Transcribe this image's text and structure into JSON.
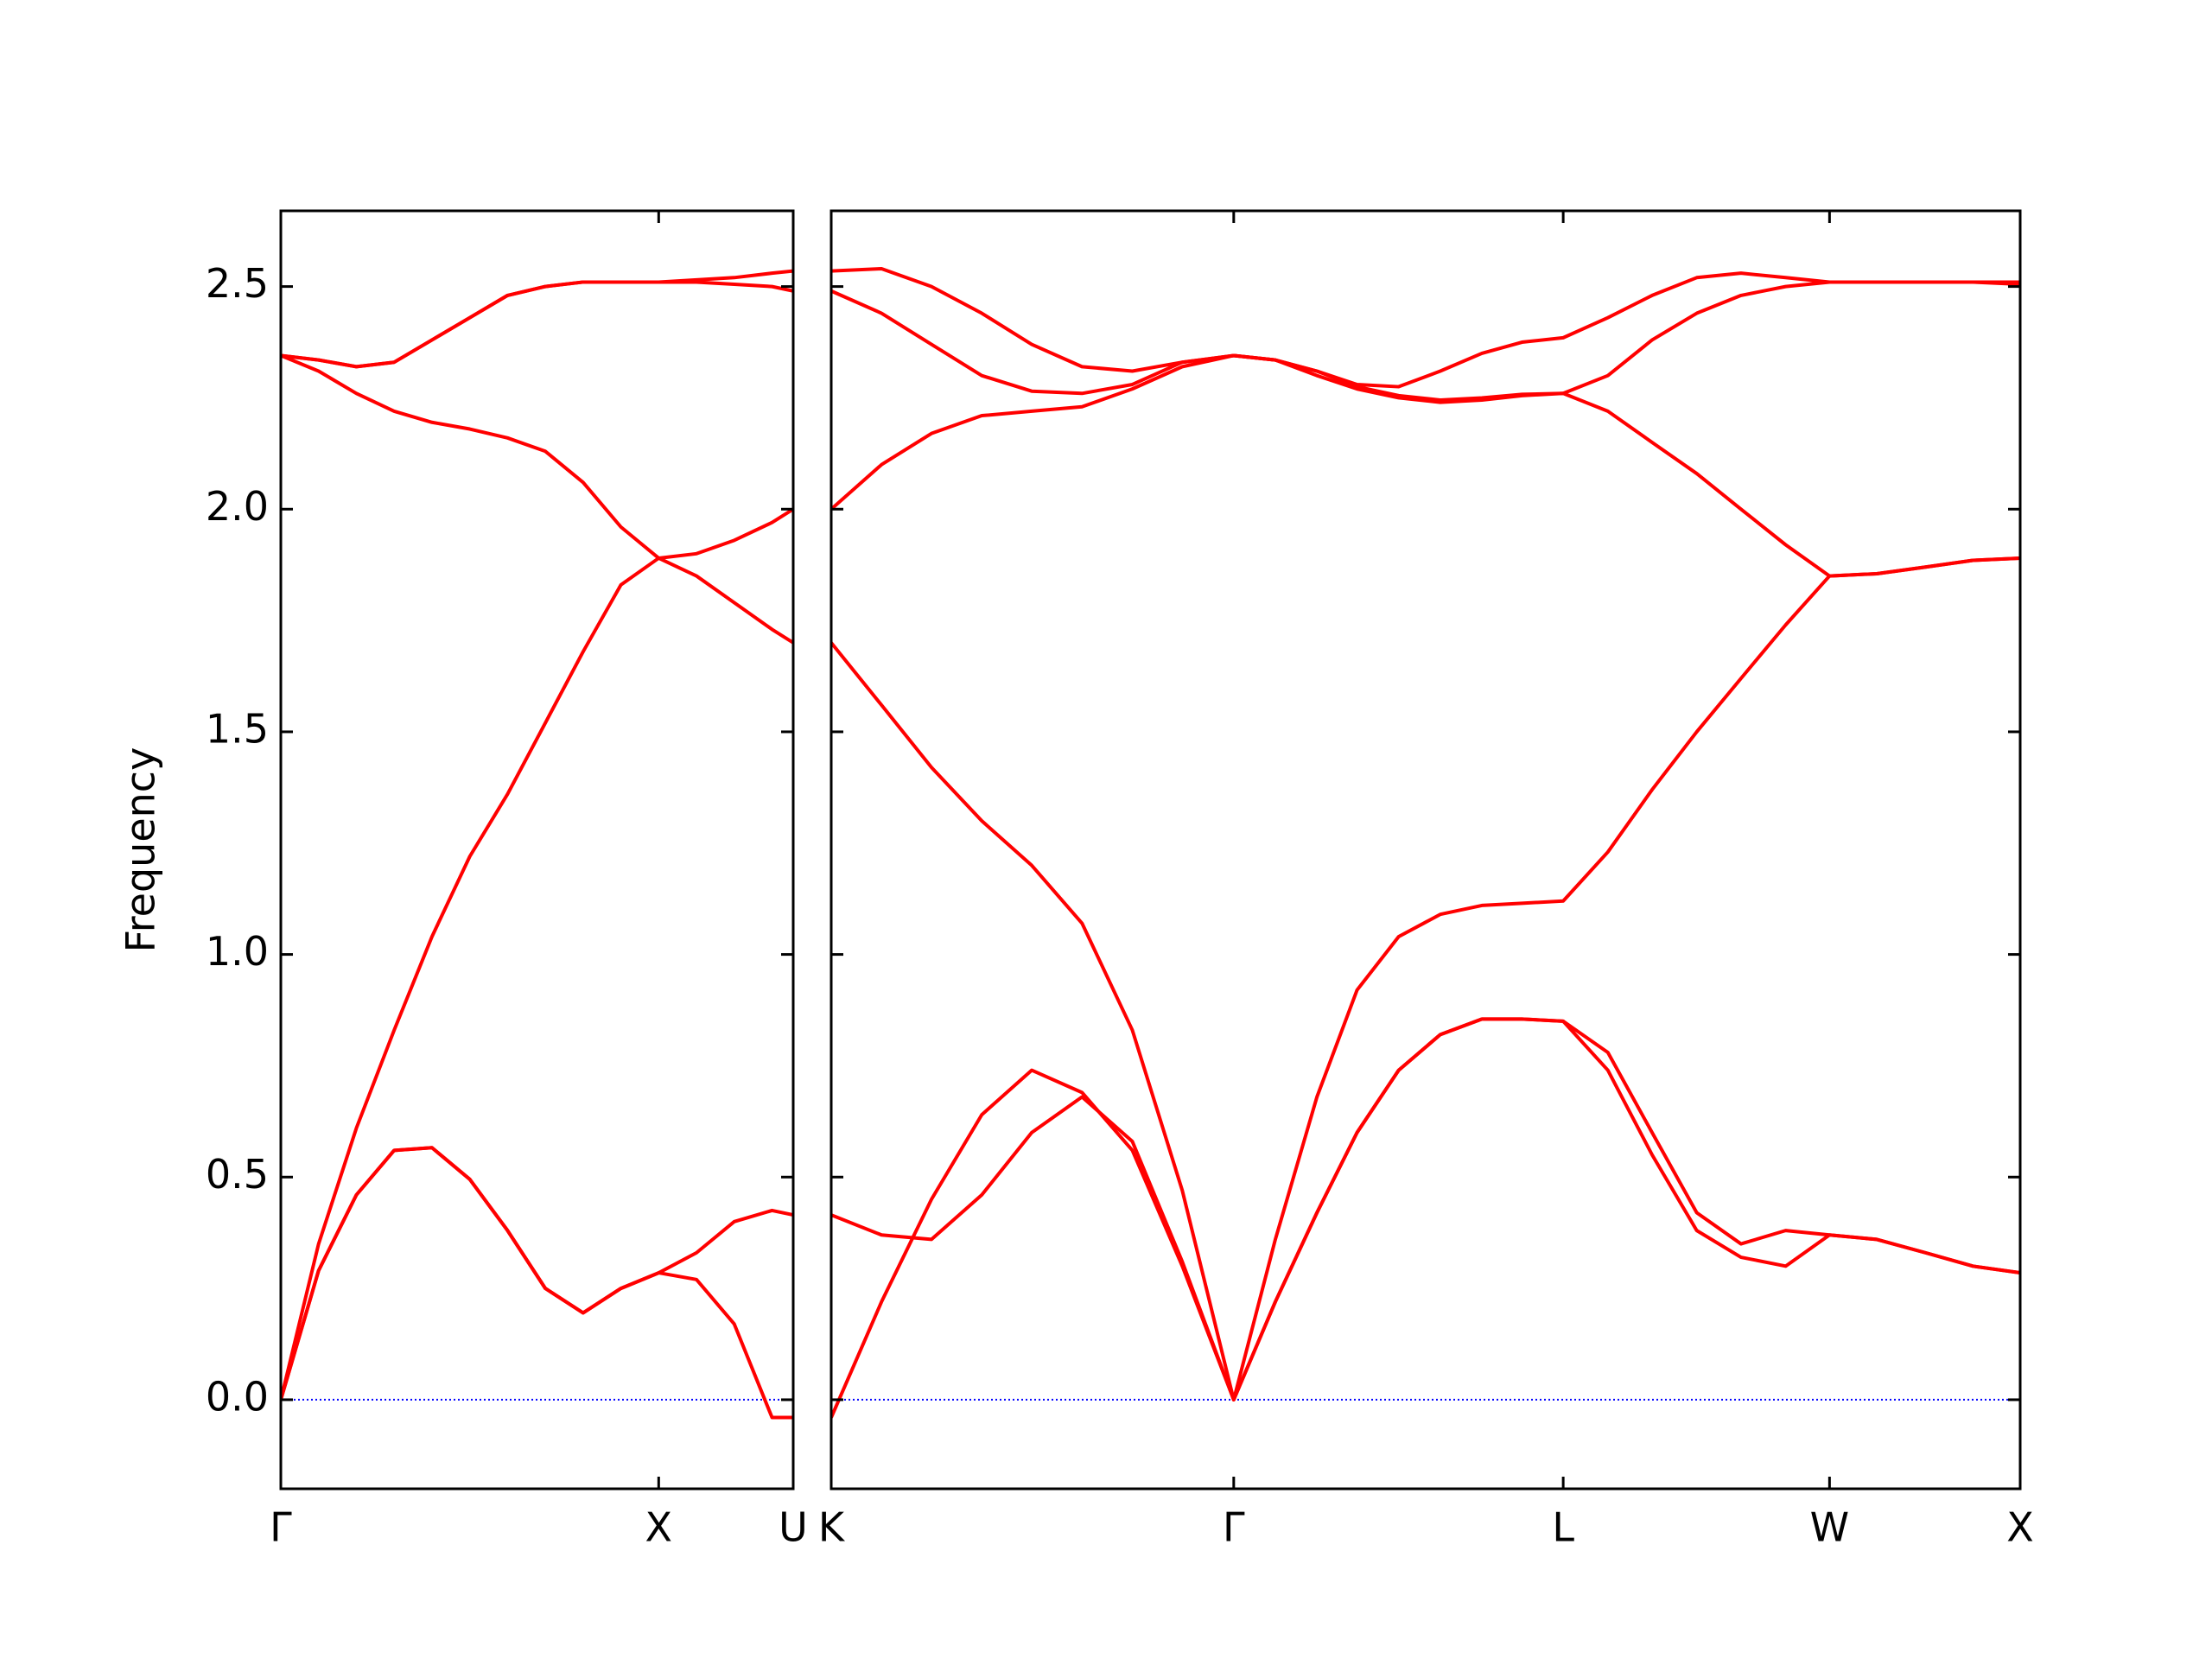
{
  "chart_data": [
    {
      "type": "line",
      "ylabel": "Frequency",
      "xlim": [
        0,
        1.356
      ],
      "ylim": [
        -0.2,
        2.67
      ],
      "xticks": [
        {
          "value": 0,
          "label": "Γ"
        },
        {
          "value": 1,
          "label": "X"
        },
        {
          "value": 1.356,
          "label": "U"
        }
      ],
      "yticks": [
        {
          "value": 0,
          "label": "0.0"
        },
        0.5,
        {
          "value": 1,
          "label": "1.0"
        },
        1.5,
        {
          "value": 2,
          "label": "2.0"
        },
        2.5
      ],
      "ytick_labels": true,
      "hline": 0,
      "hline_color": "#0000ff",
      "x": [
        0,
        0.1,
        0.2,
        0.3,
        0.4,
        0.5,
        0.6,
        0.7,
        0.8,
        0.9,
        1.0,
        1.1,
        1.2,
        1.3,
        1.356
      ],
      "series": [
        {
          "color": "#ff0000",
          "values": [
            0,
            0.29,
            0.46,
            0.56,
            0.566,
            0.495,
            0.38,
            0.25,
            0.195,
            0.25,
            0.285,
            0.27,
            0.17,
            -0.04,
            -0.04
          ]
        },
        {
          "color": "#ff0000",
          "values": [
            0,
            0.29,
            0.46,
            0.56,
            0.566,
            0.495,
            0.38,
            0.25,
            0.195,
            0.25,
            0.285,
            0.33,
            0.4,
            0.425,
            0.415
          ]
        },
        {
          "color": "#ff0000",
          "values": [
            0,
            0.35,
            0.61,
            0.83,
            1.04,
            1.22,
            1.36,
            1.52,
            1.68,
            1.83,
            1.89,
            1.85,
            1.79,
            1.73,
            1.7
          ]
        },
        {
          "color": "#ff0000",
          "values": [
            2.345,
            2.31,
            2.26,
            2.22,
            2.195,
            2.18,
            2.16,
            2.13,
            2.06,
            1.96,
            1.89,
            1.9,
            1.93,
            1.97,
            2.0
          ]
        },
        {
          "color": "#ff0000",
          "values": [
            2.345,
            2.335,
            2.32,
            2.33,
            2.38,
            2.43,
            2.48,
            2.5,
            2.51,
            2.51,
            2.51,
            2.51,
            2.505,
            2.5,
            2.49
          ]
        },
        {
          "color": "#ff0000",
          "values": [
            2.345,
            2.335,
            2.32,
            2.33,
            2.38,
            2.43,
            2.48,
            2.5,
            2.51,
            2.51,
            2.51,
            2.515,
            2.52,
            2.53,
            2.535
          ]
        }
      ]
    },
    {
      "type": "line",
      "xlim": [
        1.356,
        4.499
      ],
      "ylim": [
        -0.2,
        2.67
      ],
      "xticks": [
        {
          "value": 1.356,
          "label": "K"
        },
        {
          "value": 2.42,
          "label": "Γ"
        },
        {
          "value": 3.291,
          "label": "L"
        },
        {
          "value": 3.995,
          "label": "W"
        },
        {
          "value": 4.499,
          "label": "X"
        }
      ],
      "yticks": [
        0,
        0.5,
        1,
        1.5,
        2,
        2.5
      ],
      "ytick_labels": false,
      "hline": 0,
      "hline_color": "#0000ff",
      "x": [
        1.356,
        1.489,
        1.621,
        1.754,
        1.886,
        2.019,
        2.152,
        2.284,
        2.42,
        2.53,
        2.64,
        2.746,
        2.856,
        2.966,
        3.076,
        3.182,
        3.291,
        3.409,
        3.526,
        3.644,
        3.761,
        3.879,
        3.995,
        4.12,
        4.249,
        4.374,
        4.499
      ],
      "series": [
        {
          "color": "#ff0000",
          "values": [
            -0.04,
            0.22,
            0.45,
            0.64,
            0.74,
            0.69,
            0.56,
            0.3,
            0,
            0.22,
            0.42,
            0.6,
            0.74,
            0.82,
            0.855,
            0.855,
            0.85,
            0.78,
            0.6,
            0.42,
            0.35,
            0.38,
            0.37,
            0.36,
            0.33,
            0.3,
            0.285
          ]
        },
        {
          "color": "#ff0000",
          "values": [
            0.415,
            0.37,
            0.36,
            0.46,
            0.6,
            0.68,
            0.58,
            0.31,
            0,
            0.22,
            0.42,
            0.6,
            0.74,
            0.82,
            0.855,
            0.855,
            0.85,
            0.74,
            0.55,
            0.38,
            0.32,
            0.3,
            0.37,
            0.36,
            0.33,
            0.3,
            0.285
          ]
        },
        {
          "color": "#ff0000",
          "values": [
            1.7,
            1.56,
            1.42,
            1.3,
            1.2,
            1.07,
            0.83,
            0.47,
            0,
            0.36,
            0.68,
            0.92,
            1.04,
            1.09,
            1.11,
            1.115,
            1.12,
            1.23,
            1.37,
            1.5,
            1.62,
            1.74,
            1.85,
            1.855,
            1.87,
            1.885,
            1.89
          ]
        },
        {
          "color": "#ff0000",
          "values": [
            2.0,
            2.1,
            2.17,
            2.21,
            2.22,
            2.23,
            2.27,
            2.32,
            2.345,
            2.335,
            2.31,
            2.275,
            2.255,
            2.245,
            2.25,
            2.258,
            2.26,
            2.22,
            2.15,
            2.08,
            2.0,
            1.92,
            1.85,
            1.855,
            1.87,
            1.885,
            1.89
          ]
        },
        {
          "color": "#ff0000",
          "values": [
            2.49,
            2.44,
            2.37,
            2.3,
            2.265,
            2.26,
            2.28,
            2.33,
            2.345,
            2.335,
            2.3,
            2.27,
            2.25,
            2.24,
            2.245,
            2.255,
            2.26,
            2.3,
            2.38,
            2.44,
            2.48,
            2.5,
            2.51,
            2.51,
            2.51,
            2.51,
            2.51
          ]
        },
        {
          "color": "#ff0000",
          "values": [
            2.535,
            2.54,
            2.5,
            2.44,
            2.37,
            2.32,
            2.31,
            2.33,
            2.345,
            2.335,
            2.31,
            2.28,
            2.275,
            2.31,
            2.35,
            2.375,
            2.385,
            2.43,
            2.48,
            2.52,
            2.53,
            2.52,
            2.51,
            2.51,
            2.51,
            2.51,
            2.505
          ]
        }
      ]
    }
  ]
}
